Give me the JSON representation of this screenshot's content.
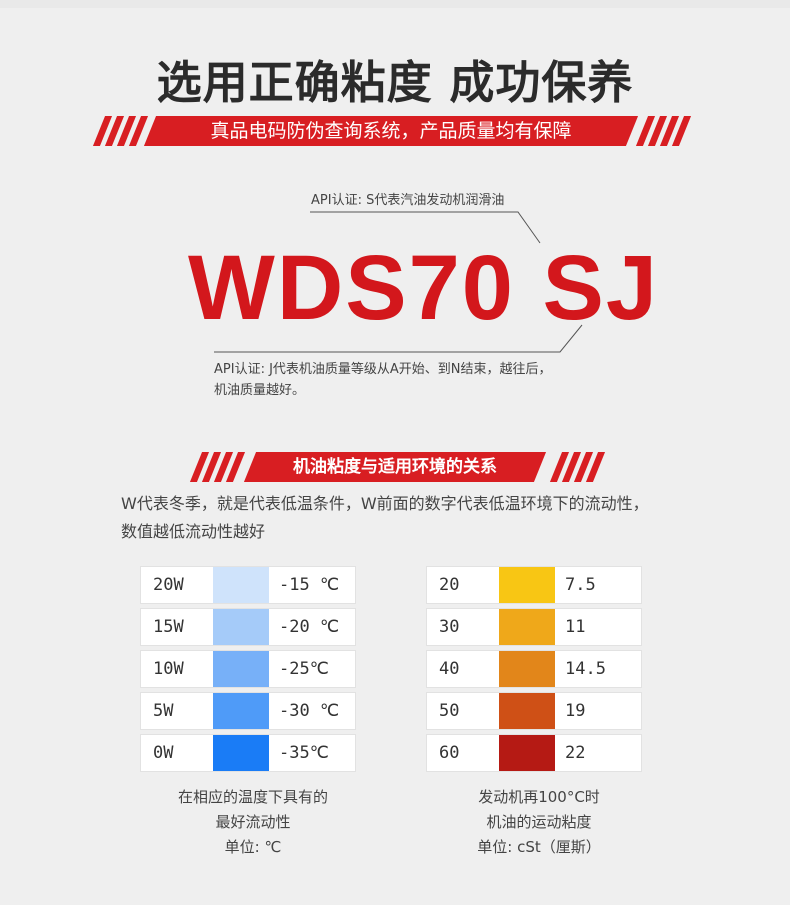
{
  "title": "选用正确粘度 成功保养",
  "banner": "真品电码防伪查询系统，产品质量均有保障",
  "api_top": "API认证: S代表汽油发动机润滑油",
  "product_code": "WDS70 SJ",
  "api_bottom_line1": "API认证: J代表机油质量等级从A开始、到N结束，越往后，",
  "api_bottom_line2": "机油质量越好。",
  "section_title": "机油粘度与适用环境的关系",
  "description_line1": "W代表冬季，就是代表低温条件，W前面的数字代表低温环境下的流动性，",
  "description_line2": "数值越低流动性越好",
  "winter_table": [
    {
      "grade": "20W",
      "temp": "-15 ℃",
      "color": "#cfe3fb"
    },
    {
      "grade": "15W",
      "temp": "-20 ℃",
      "color": "#a5cbf9"
    },
    {
      "grade": "10W",
      "temp": "-25℃",
      "color": "#77b0f8"
    },
    {
      "grade": "5W",
      "temp": "-30 ℃",
      "color": "#4f9bf8"
    },
    {
      "grade": "0W",
      "temp": "-35℃",
      "color": "#1a7cf6"
    }
  ],
  "hot_table": [
    {
      "grade": "20",
      "viscosity": "7.5",
      "color": "#f8c614"
    },
    {
      "grade": "30",
      "viscosity": "11",
      "color": "#efa81a"
    },
    {
      "grade": "40",
      "viscosity": "14.5",
      "color": "#e2861a"
    },
    {
      "grade": "50",
      "viscosity": "19",
      "color": "#cf5016"
    },
    {
      "grade": "60",
      "viscosity": "22",
      "color": "#b51a14"
    }
  ],
  "caption_left": [
    "在相应的温度下具有的",
    "最好流动性",
    "单位: ℃"
  ],
  "caption_right": [
    "发动机再100°C时",
    "机油的运动粘度",
    "单位: cSt（厘斯）"
  ],
  "accent_color": "#d81e22"
}
